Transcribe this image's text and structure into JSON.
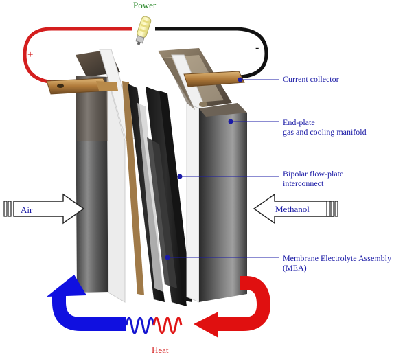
{
  "labels": {
    "power": "Power",
    "heat": "Heat",
    "plus": "+",
    "minus": "-",
    "air": "Air",
    "methanol": "Methanol",
    "current_collector": "Current collector",
    "end_plate_line1": "End-plate",
    "end_plate_line2": "gas and cooling manifold",
    "bipolar_line1": "Bipolar flow-plate",
    "bipolar_line2": "interconnect",
    "mea_line1": "Membrane Electrolyte Assembly",
    "mea_line2": "(MEA)"
  },
  "colors": {
    "positive_wire": "#d41e1e",
    "negative_wire": "#111111",
    "label_text": "#1a1aa6",
    "heat_label": "#d41e1e",
    "power_label": "#2e8a2e",
    "cold_arrow": "#1010e0",
    "hot_arrow": "#e01010"
  },
  "icons": [
    "lightbulb-icon",
    "air-arrow-icon",
    "methanol-arrow-icon",
    "cold-return-arrow-icon",
    "hot-return-arrow-icon",
    "heat-coil-icon"
  ]
}
